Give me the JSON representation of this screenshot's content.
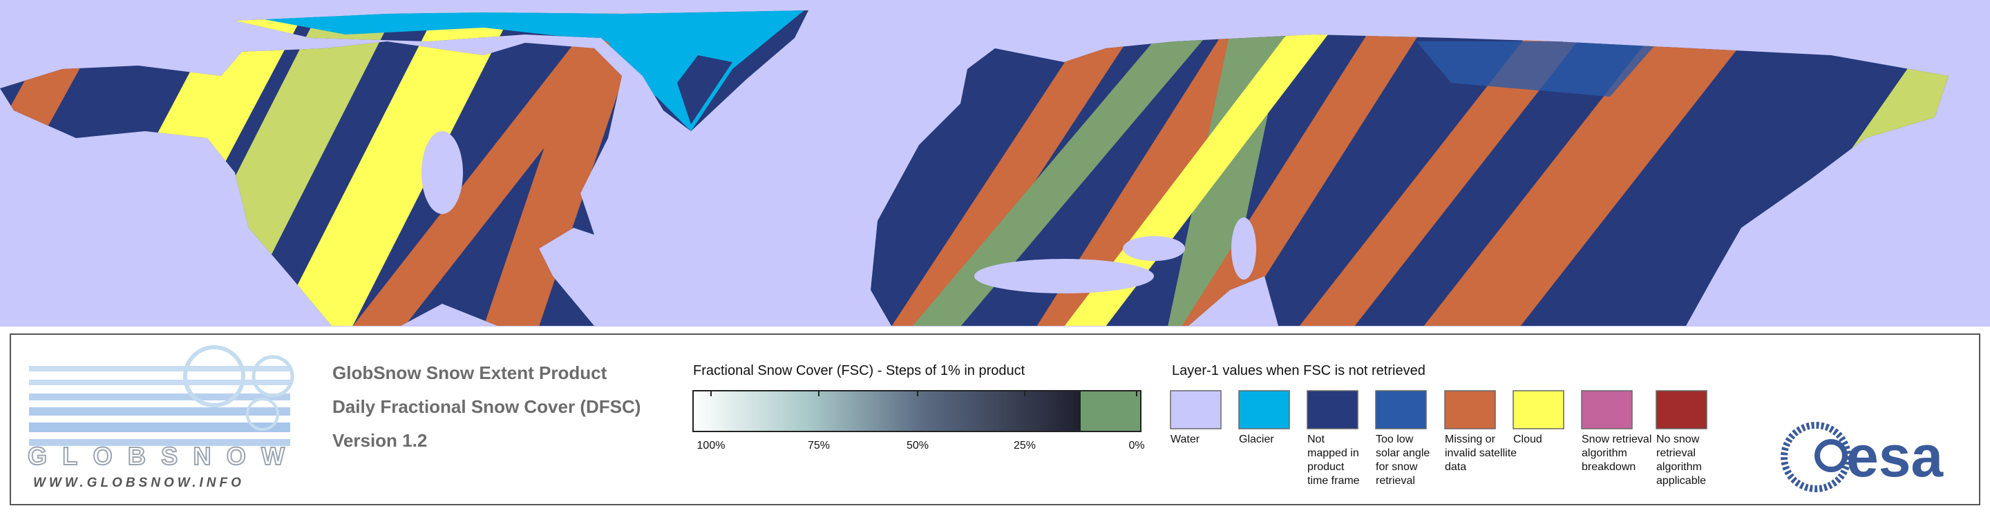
{
  "logo": {
    "name": "GLOBSNOW",
    "url": "WWW.GLOBSNOW.INFO"
  },
  "product": {
    "title": "GlobSnow Snow Extent Product",
    "subtitle": "Daily Fractional Snow Cover (DFSC)",
    "version": "Version 1.2"
  },
  "colorbar": {
    "title": "Fractional Snow Cover (FSC) - Steps of 1% in product",
    "labels": [
      "100%",
      "75%",
      "50%",
      "25%",
      "0%"
    ]
  },
  "layer1": {
    "title": "Layer-1 values when FSC is not retrieved",
    "items": [
      {
        "color": "#c8c8fc",
        "lines": [
          "Water"
        ]
      },
      {
        "color": "#00b0e6",
        "lines": [
          "Glacier"
        ]
      },
      {
        "color": "#263a7c",
        "lines": [
          "Not",
          "mapped in",
          "product",
          "time frame"
        ]
      },
      {
        "color": "#2a5aa8",
        "lines": [
          "Too low",
          "solar angle",
          "for snow",
          "retrieval"
        ]
      },
      {
        "color": "#cc6a40",
        "lines": [
          "Missing or",
          "invalid satellite",
          "data"
        ]
      },
      {
        "color": "#ffff5a",
        "lines": [
          "Cloud"
        ]
      },
      {
        "color": "#c4649c",
        "lines": [
          "Snow retrieval",
          "algorithm",
          "breakdown"
        ]
      },
      {
        "color": "#a02c2c",
        "lines": [
          "No snow",
          "retrieval",
          "algorithm",
          "applicable"
        ]
      }
    ]
  },
  "agency": {
    "name": "esa"
  }
}
